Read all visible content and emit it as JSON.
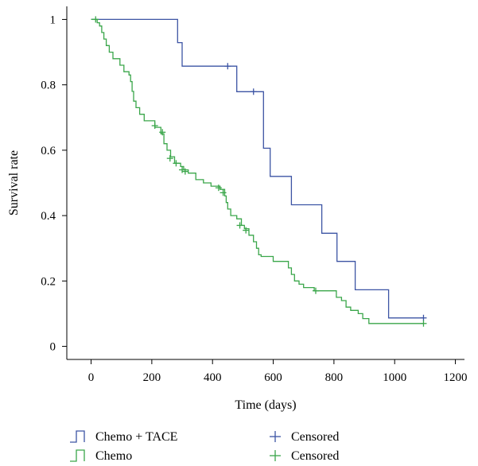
{
  "chart_data": {
    "type": "line",
    "subtype": "kaplan-meier step curve",
    "title": "",
    "xlabel": "Time (days)",
    "ylabel": "Survival rate",
    "xlim": [
      -80,
      1230
    ],
    "ylim": [
      -0.04,
      1.04
    ],
    "x_ticks": [
      0,
      200,
      400,
      600,
      800,
      1000,
      1200
    ],
    "y_ticks": [
      0,
      0.2,
      0.4,
      0.6,
      0.8,
      1
    ],
    "y_tick_labels": [
      "0",
      "0.2",
      "0.4",
      "0.6",
      "0.8",
      "1"
    ],
    "grid": false,
    "legend_position": "bottom",
    "series": [
      {
        "name": "Chemo + TACE",
        "color": "#3c54a4",
        "steps": [
          [
            0,
            1.0
          ],
          [
            285,
            0.929
          ],
          [
            300,
            0.857
          ],
          [
            480,
            0.779
          ],
          [
            568,
            0.606
          ],
          [
            590,
            0.52
          ],
          [
            660,
            0.433
          ],
          [
            760,
            0.346
          ],
          [
            810,
            0.26
          ],
          [
            870,
            0.173
          ],
          [
            980,
            0.087
          ],
          [
            1095,
            0.087
          ]
        ],
        "censored": [
          [
            450,
            0.857
          ],
          [
            535,
            0.779
          ],
          [
            1095,
            0.087
          ]
        ],
        "censored_label": "Censored"
      },
      {
        "name": "Chemo",
        "color": "#3aa64a",
        "steps": [
          [
            0,
            1.0
          ],
          [
            20,
            0.99
          ],
          [
            28,
            0.98
          ],
          [
            35,
            0.96
          ],
          [
            42,
            0.94
          ],
          [
            50,
            0.92
          ],
          [
            60,
            0.9
          ],
          [
            72,
            0.88
          ],
          [
            95,
            0.86
          ],
          [
            108,
            0.84
          ],
          [
            125,
            0.83
          ],
          [
            130,
            0.81
          ],
          [
            135,
            0.78
          ],
          [
            140,
            0.75
          ],
          [
            148,
            0.73
          ],
          [
            160,
            0.71
          ],
          [
            175,
            0.69
          ],
          [
            210,
            0.67
          ],
          [
            230,
            0.65
          ],
          [
            240,
            0.62
          ],
          [
            250,
            0.6
          ],
          [
            262,
            0.58
          ],
          [
            275,
            0.56
          ],
          [
            295,
            0.55
          ],
          [
            305,
            0.54
          ],
          [
            320,
            0.53
          ],
          [
            345,
            0.51
          ],
          [
            370,
            0.5
          ],
          [
            395,
            0.49
          ],
          [
            425,
            0.48
          ],
          [
            440,
            0.46
          ],
          [
            445,
            0.44
          ],
          [
            450,
            0.42
          ],
          [
            460,
            0.4
          ],
          [
            480,
            0.39
          ],
          [
            495,
            0.37
          ],
          [
            505,
            0.36
          ],
          [
            520,
            0.34
          ],
          [
            535,
            0.32
          ],
          [
            545,
            0.3
          ],
          [
            552,
            0.28
          ],
          [
            560,
            0.275
          ],
          [
            600,
            0.26
          ],
          [
            650,
            0.24
          ],
          [
            660,
            0.22
          ],
          [
            670,
            0.2
          ],
          [
            685,
            0.19
          ],
          [
            700,
            0.18
          ],
          [
            735,
            0.17
          ],
          [
            800,
            0.17
          ],
          [
            808,
            0.15
          ],
          [
            825,
            0.14
          ],
          [
            840,
            0.12
          ],
          [
            855,
            0.11
          ],
          [
            880,
            0.1
          ],
          [
            895,
            0.085
          ],
          [
            915,
            0.07
          ],
          [
            1095,
            0.07
          ]
        ],
        "censored": [
          [
            15,
            1.0
          ],
          [
            210,
            0.675
          ],
          [
            235,
            0.655
          ],
          [
            260,
            0.575
          ],
          [
            280,
            0.56
          ],
          [
            300,
            0.54
          ],
          [
            310,
            0.535
          ],
          [
            420,
            0.485
          ],
          [
            435,
            0.47
          ],
          [
            490,
            0.37
          ],
          [
            510,
            0.355
          ],
          [
            740,
            0.17
          ],
          [
            1095,
            0.07
          ]
        ],
        "censored_label": "Censored"
      }
    ]
  }
}
